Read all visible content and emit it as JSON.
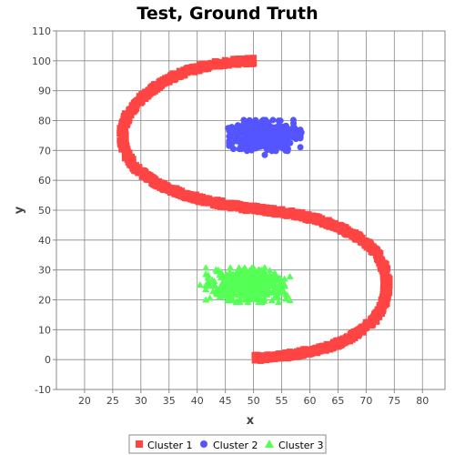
{
  "chart_data": {
    "type": "scatter",
    "title": "Test, Ground Truth",
    "xlabel": "x",
    "ylabel": "y",
    "xlim": [
      15,
      84
    ],
    "ylim": [
      -10,
      110
    ],
    "xticks": [
      20,
      25,
      30,
      35,
      40,
      45,
      50,
      55,
      60,
      65,
      70,
      75,
      80
    ],
    "yticks": [
      -10,
      0,
      10,
      20,
      30,
      40,
      50,
      60,
      70,
      80,
      90,
      100,
      110
    ],
    "grid": true,
    "legend_position": "bottom",
    "series": [
      {
        "name": "Cluster 1",
        "marker": "square",
        "color": "#ff4444",
        "points": [
          [
            50,
            100
          ],
          [
            46,
            99.5
          ],
          [
            42,
            98.5
          ],
          [
            38,
            96.5
          ],
          [
            35,
            94
          ],
          [
            32,
            90.5
          ],
          [
            29.5,
            86.5
          ],
          [
            27.7,
            82
          ],
          [
            26.8,
            77.5
          ],
          [
            26.8,
            72.5
          ],
          [
            27.6,
            68
          ],
          [
            29.2,
            64
          ],
          [
            31.5,
            60.5
          ],
          [
            34.5,
            57.5
          ],
          [
            38,
            55
          ],
          [
            42,
            53
          ],
          [
            46,
            51.5
          ],
          [
            50,
            50.5
          ],
          [
            54,
            49.5
          ],
          [
            58,
            48.5
          ],
          [
            62,
            46.5
          ],
          [
            65.5,
            44
          ],
          [
            68.5,
            41
          ],
          [
            71,
            37.5
          ],
          [
            72.8,
            33
          ],
          [
            73.6,
            28
          ],
          [
            73.6,
            23
          ],
          [
            73,
            18
          ],
          [
            71.5,
            13.5
          ],
          [
            69,
            9.5
          ],
          [
            66,
            6
          ],
          [
            62,
            3.5
          ],
          [
            58,
            2
          ],
          [
            54,
            1
          ],
          [
            50,
            0.5
          ]
        ]
      },
      {
        "name": "Cluster 2",
        "marker": "circle",
        "color": "#5555ff",
        "center": [
          52,
          75
        ],
        "spread": [
          5.5,
          4.5
        ],
        "outliers": [
          [
            45.5,
            77.5
          ],
          [
            58.5,
            76
          ],
          [
            52,
            68.5
          ],
          [
            56.5,
            72.5
          ],
          [
            47.5,
            70.5
          ]
        ]
      },
      {
        "name": "Cluster 3",
        "marker": "triangle",
        "color": "#55ff55",
        "center": [
          49,
          25
        ],
        "spread": [
          6.5,
          5
        ],
        "outliers": [
          [
            40.5,
            25
          ],
          [
            55.5,
            27
          ],
          [
            43.5,
            29.5
          ],
          [
            51,
            19.5
          ],
          [
            44,
            21
          ]
        ]
      }
    ]
  },
  "legend": {
    "items": [
      {
        "label": "Cluster 1"
      },
      {
        "label": "Cluster 2"
      },
      {
        "label": "Cluster 3"
      }
    ]
  }
}
